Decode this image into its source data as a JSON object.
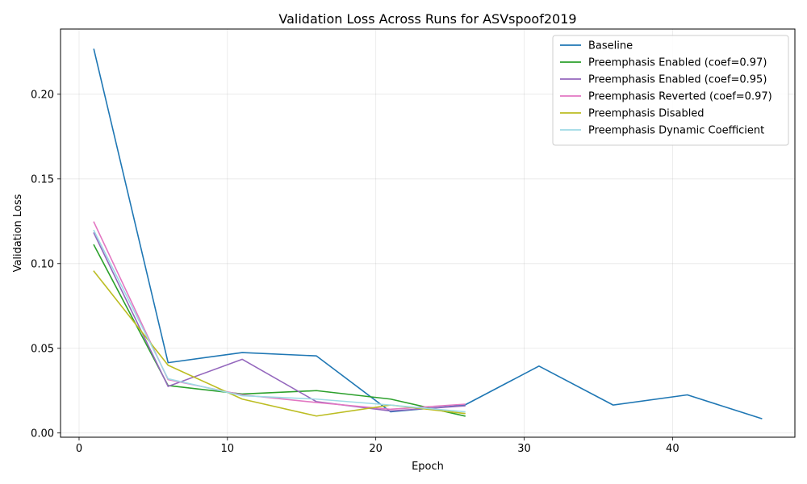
{
  "chart_data": {
    "type": "line",
    "title": "Validation Loss Across Runs for ASVspoof2019",
    "xlabel": "Epoch",
    "ylabel": "Validation Loss",
    "xlim": [
      -1.25,
      48.25
    ],
    "ylim": [
      -0.0025,
      0.2385
    ],
    "xticks": [
      0,
      10,
      20,
      30,
      40
    ],
    "xtick_labels": [
      "0",
      "10",
      "20",
      "30",
      "40"
    ],
    "yticks": [
      0.0,
      0.05,
      0.1,
      0.15,
      0.2
    ],
    "ytick_labels": [
      "0.00",
      "0.05",
      "0.10",
      "0.15",
      "0.20"
    ],
    "grid": true,
    "legend_position": "top-right",
    "series": [
      {
        "name": "Baseline",
        "color": "#1f77b4",
        "x": [
          1,
          6,
          11,
          16,
          21,
          26,
          31,
          36,
          41,
          46
        ],
        "y": [
          0.2265,
          0.0415,
          0.0475,
          0.0455,
          0.0125,
          0.0165,
          0.0395,
          0.0165,
          0.0225,
          0.0085
        ]
      },
      {
        "name": "Preemphasis Enabled (coef=0.97)",
        "color": "#2ca02c",
        "x": [
          1,
          6,
          11,
          16,
          21,
          26
        ],
        "y": [
          0.111,
          0.028,
          0.023,
          0.025,
          0.02,
          0.01
        ]
      },
      {
        "name": "Preemphasis Enabled (coef=0.95)",
        "color": "#9467bd",
        "x": [
          1,
          6,
          11,
          16,
          21,
          26
        ],
        "y": [
          0.118,
          0.0275,
          0.0435,
          0.0185,
          0.013,
          0.016
        ]
      },
      {
        "name": "Preemphasis Reverted (coef=0.97)",
        "color": "#e377c2",
        "x": [
          1,
          6,
          11,
          16,
          21,
          26
        ],
        "y": [
          0.1245,
          0.0315,
          0.0225,
          0.018,
          0.014,
          0.017
        ]
      },
      {
        "name": "Preemphasis Disabled",
        "color": "#bcbd22",
        "x": [
          1,
          6,
          11,
          16,
          21,
          26
        ],
        "y": [
          0.0955,
          0.04,
          0.02,
          0.01,
          0.0165,
          0.0115
        ]
      },
      {
        "name": "Preemphasis Dynamic Coefficient",
        "color": "#9edae5",
        "x": [
          1,
          6,
          11,
          16,
          21,
          26
        ],
        "y": [
          0.1195,
          0.032,
          0.022,
          0.02,
          0.0165,
          0.0125
        ]
      }
    ]
  }
}
